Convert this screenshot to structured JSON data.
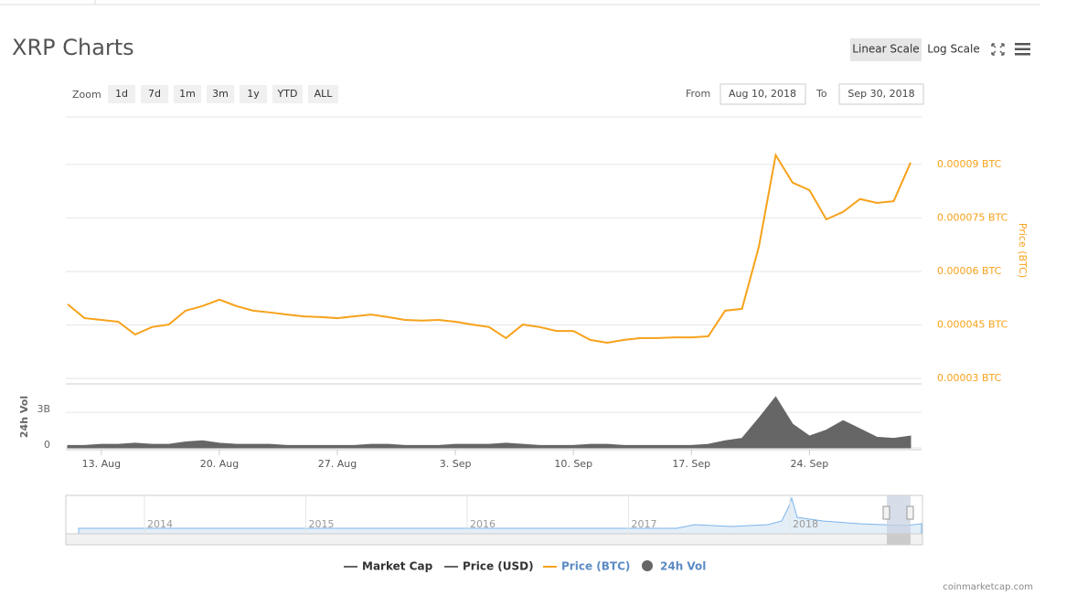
{
  "header": {
    "title": "XRP Charts",
    "scale_buttons": [
      "Linear Scale",
      "Log Scale"
    ]
  },
  "controls": {
    "zoom_label": "Zoom",
    "zoom": [
      "1d",
      "7d",
      "1m",
      "3m",
      "1y",
      "YTD",
      "ALL"
    ],
    "from_label": "From",
    "from": "Aug 10, 2018",
    "to_label": "To",
    "to": "Sep 30, 2018"
  },
  "chart_data": {
    "type": "line",
    "x": [
      "2018-08-11",
      "2018-08-12",
      "2018-08-13",
      "2018-08-14",
      "2018-08-15",
      "2018-08-16",
      "2018-08-17",
      "2018-08-18",
      "2018-08-19",
      "2018-08-20",
      "2018-08-21",
      "2018-08-22",
      "2018-08-23",
      "2018-08-24",
      "2018-08-25",
      "2018-08-26",
      "2018-08-27",
      "2018-08-28",
      "2018-08-29",
      "2018-08-30",
      "2018-08-31",
      "2018-09-01",
      "2018-09-02",
      "2018-09-03",
      "2018-09-04",
      "2018-09-05",
      "2018-09-06",
      "2018-09-07",
      "2018-09-08",
      "2018-09-09",
      "2018-09-10",
      "2018-09-11",
      "2018-09-12",
      "2018-09-13",
      "2018-09-14",
      "2018-09-15",
      "2018-09-16",
      "2018-09-17",
      "2018-09-18",
      "2018-09-19",
      "2018-09-20",
      "2018-09-21",
      "2018-09-22",
      "2018-09-23",
      "2018-09-24",
      "2018-09-25",
      "2018-09-26",
      "2018-09-27",
      "2018-09-28",
      "2018-09-29",
      "2018-09-30"
    ],
    "xlim": [
      "2018-08-11",
      "2018-09-30"
    ],
    "xticks": [
      {
        "value": "2018-08-13",
        "label": "13. Aug"
      },
      {
        "value": "2018-08-20",
        "label": "20. Aug"
      },
      {
        "value": "2018-08-27",
        "label": "27. Aug"
      },
      {
        "value": "2018-09-03",
        "label": "3. Sep"
      },
      {
        "value": "2018-09-10",
        "label": "10. Sep"
      },
      {
        "value": "2018-09-17",
        "label": "17. Sep"
      },
      {
        "value": "2018-09-24",
        "label": "24. Sep"
      }
    ],
    "ylabel": "Price (BTC)",
    "ylim": [
      3e-05,
      0.0001033
    ],
    "yticks": [
      {
        "value": 3e-05,
        "label": "0.00003 BTC"
      },
      {
        "value": 4.5e-05,
        "label": "0.000045 BTC"
      },
      {
        "value": 6e-05,
        "label": "0.00006 BTC"
      },
      {
        "value": 7.5e-05,
        "label": "0.000075 BTC"
      },
      {
        "value": 9e-05,
        "label": "0.00009 BTC"
      }
    ],
    "y2label": "24h Vol",
    "y2lim": [
      0,
      5400000000
    ],
    "y2ticks": [
      0,
      {
        "value": 3000000000,
        "label": "3B"
      }
    ],
    "grid": true,
    "series": [
      {
        "name": "Price (BTC)",
        "color": "#f7a21b",
        "values": [
          5.08e-05,
          4.69e-05,
          4.64e-05,
          4.59e-05,
          4.23e-05,
          4.44e-05,
          4.51e-05,
          4.9e-05,
          5.03e-05,
          5.21e-05,
          5.03e-05,
          4.9e-05,
          4.85e-05,
          4.79e-05,
          4.74e-05,
          4.72e-05,
          4.69e-05,
          4.74e-05,
          4.79e-05,
          4.72e-05,
          4.64e-05,
          4.62e-05,
          4.64e-05,
          4.59e-05,
          4.51e-05,
          4.44e-05,
          4.13e-05,
          4.51e-05,
          4.44e-05,
          4.33e-05,
          4.33e-05,
          4.08e-05,
          4e-05,
          4.08e-05,
          4.13e-05,
          4.13e-05,
          4.15e-05,
          4.15e-05,
          4.18e-05,
          4.9e-05,
          4.95e-05,
          6.69e-05,
          9.26e-05,
          8.49e-05,
          8.28e-05,
          7.46e-05,
          7.67e-05,
          8.03e-05,
          7.92e-05,
          7.97e-05,
          9.05e-05
        ]
      },
      {
        "name": "24h Vol",
        "color": "#666666",
        "axis": "y2",
        "values": [
          200000000,
          200000000,
          300000000,
          300000000,
          400000000,
          300000000,
          300000000,
          500000000,
          600000000,
          400000000,
          300000000,
          300000000,
          300000000,
          200000000,
          200000000,
          200000000,
          200000000,
          200000000,
          300000000,
          300000000,
          200000000,
          200000000,
          200000000,
          300000000,
          300000000,
          300000000,
          400000000,
          300000000,
          200000000,
          200000000,
          200000000,
          300000000,
          300000000,
          200000000,
          200000000,
          200000000,
          200000000,
          200000000,
          300000000,
          600000000,
          800000000,
          2500000000,
          4300000000,
          2000000000,
          1000000000,
          1500000000,
          2300000000,
          1600000000,
          900000000,
          800000000,
          1000000000
        ]
      }
    ],
    "legend_inactive": [
      "Market Cap",
      "Price (USD)"
    ]
  },
  "navigator": {
    "years": [
      "2014",
      "2015",
      "2016",
      "2017",
      "2018"
    ]
  },
  "credit": "coinmarketcap.com"
}
